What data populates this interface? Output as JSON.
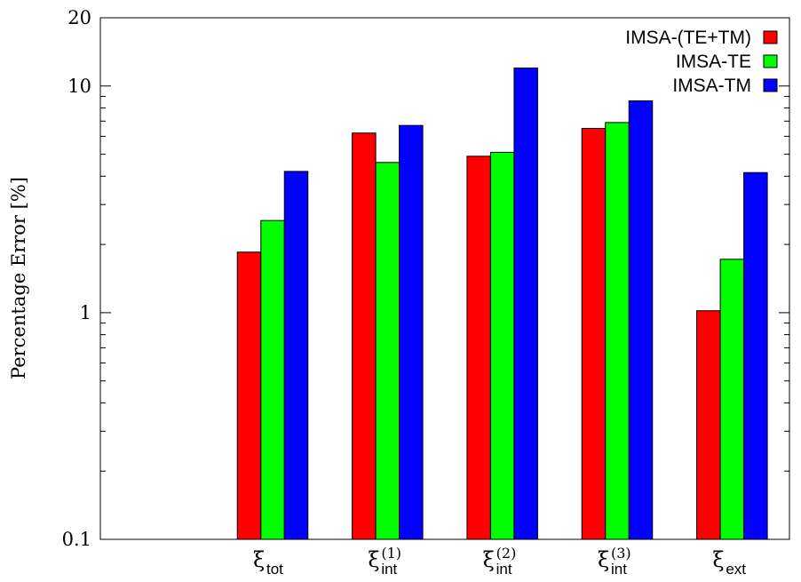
{
  "chart_data": {
    "type": "bar",
    "scale_y": "log",
    "ylabel": "Percentage Error [%]",
    "ylim": [
      0.1,
      20
    ],
    "y_ticks": [
      {
        "value": 0.1,
        "label": "0.1"
      },
      {
        "value": 1,
        "label": "1"
      },
      {
        "value": 10,
        "label": "10"
      },
      {
        "value": 20,
        "label": "20"
      }
    ],
    "categories": [
      {
        "base": "ξ",
        "sub": "tot",
        "sup": ""
      },
      {
        "base": "ξ",
        "sub": "int",
        "sup": "(1)"
      },
      {
        "base": "ξ",
        "sub": "int",
        "sup": "(2)"
      },
      {
        "base": "ξ",
        "sub": "int",
        "sup": "(3)"
      },
      {
        "base": "ξ",
        "sub": "ext",
        "sup": ""
      }
    ],
    "x_range": [
      -0.5,
      5.5
    ],
    "series": [
      {
        "name": "IMSA-(TE+TM)",
        "color": "#ff0000",
        "values": [
          1.85,
          6.2,
          4.9,
          6.5,
          1.02
        ]
      },
      {
        "name": "IMSA-TE",
        "color": "#00ff00",
        "values": [
          2.55,
          4.6,
          5.1,
          6.9,
          1.72
        ]
      },
      {
        "name": "IMSA-TM",
        "color": "#0000ff",
        "values": [
          4.2,
          6.7,
          12.0,
          8.6,
          4.15
        ]
      }
    ],
    "legend_position": "top-right",
    "grid": false
  }
}
